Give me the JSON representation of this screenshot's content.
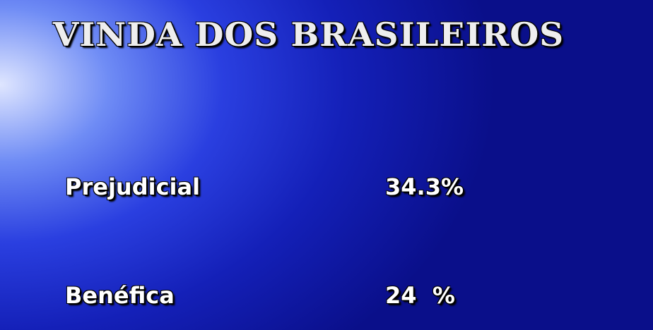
{
  "title": "VINDA DOS BRASILEIROS",
  "rows": [
    {
      "label": "Prejudicial",
      "value": "34.3%"
    },
    {
      "label": "Benéfica",
      "value": "24  %"
    }
  ]
}
